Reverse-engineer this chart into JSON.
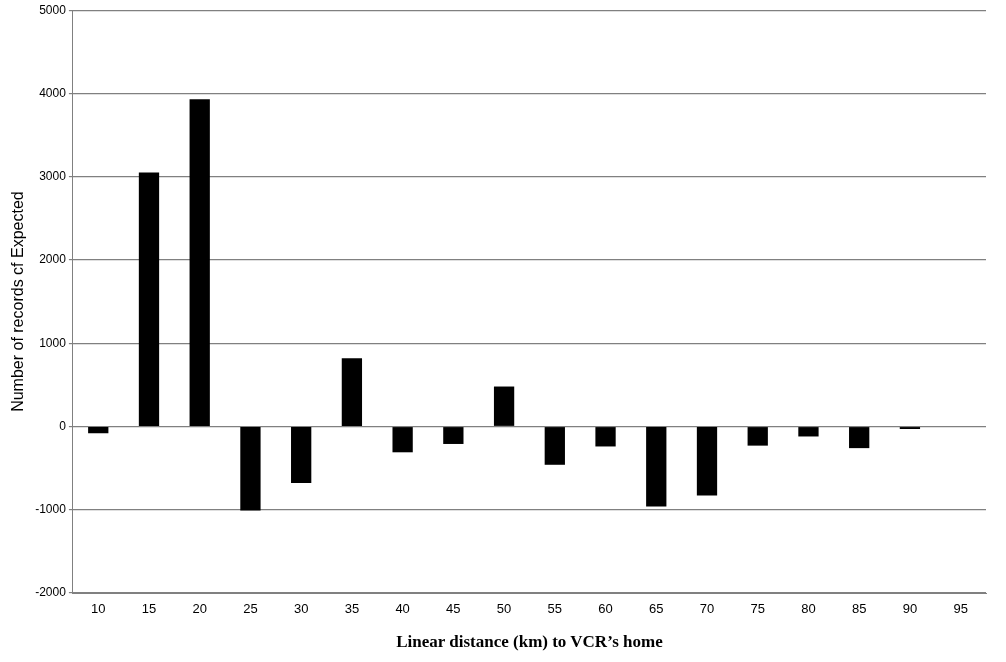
{
  "chart_data": {
    "type": "bar",
    "xlabel": "Linear distance (km) to VCR’s home",
    "ylabel": "Number of records cf Expected",
    "categories": [
      "10",
      "15",
      "20",
      "25",
      "30",
      "35",
      "40",
      "45",
      "50",
      "55",
      "60",
      "65",
      "70",
      "75",
      "80",
      "85",
      "90",
      "95"
    ],
    "values": [
      -80,
      3050,
      3930,
      -1010,
      -680,
      820,
      -310,
      -210,
      480,
      -460,
      -240,
      -960,
      -830,
      -230,
      -120,
      -260,
      -30,
      0
    ],
    "color": "#000000",
    "ylim": [
      -2000,
      5000
    ],
    "yticks": [
      -2000,
      -1000,
      0,
      1000,
      2000,
      3000,
      4000,
      5000
    ],
    "grid": "y"
  }
}
